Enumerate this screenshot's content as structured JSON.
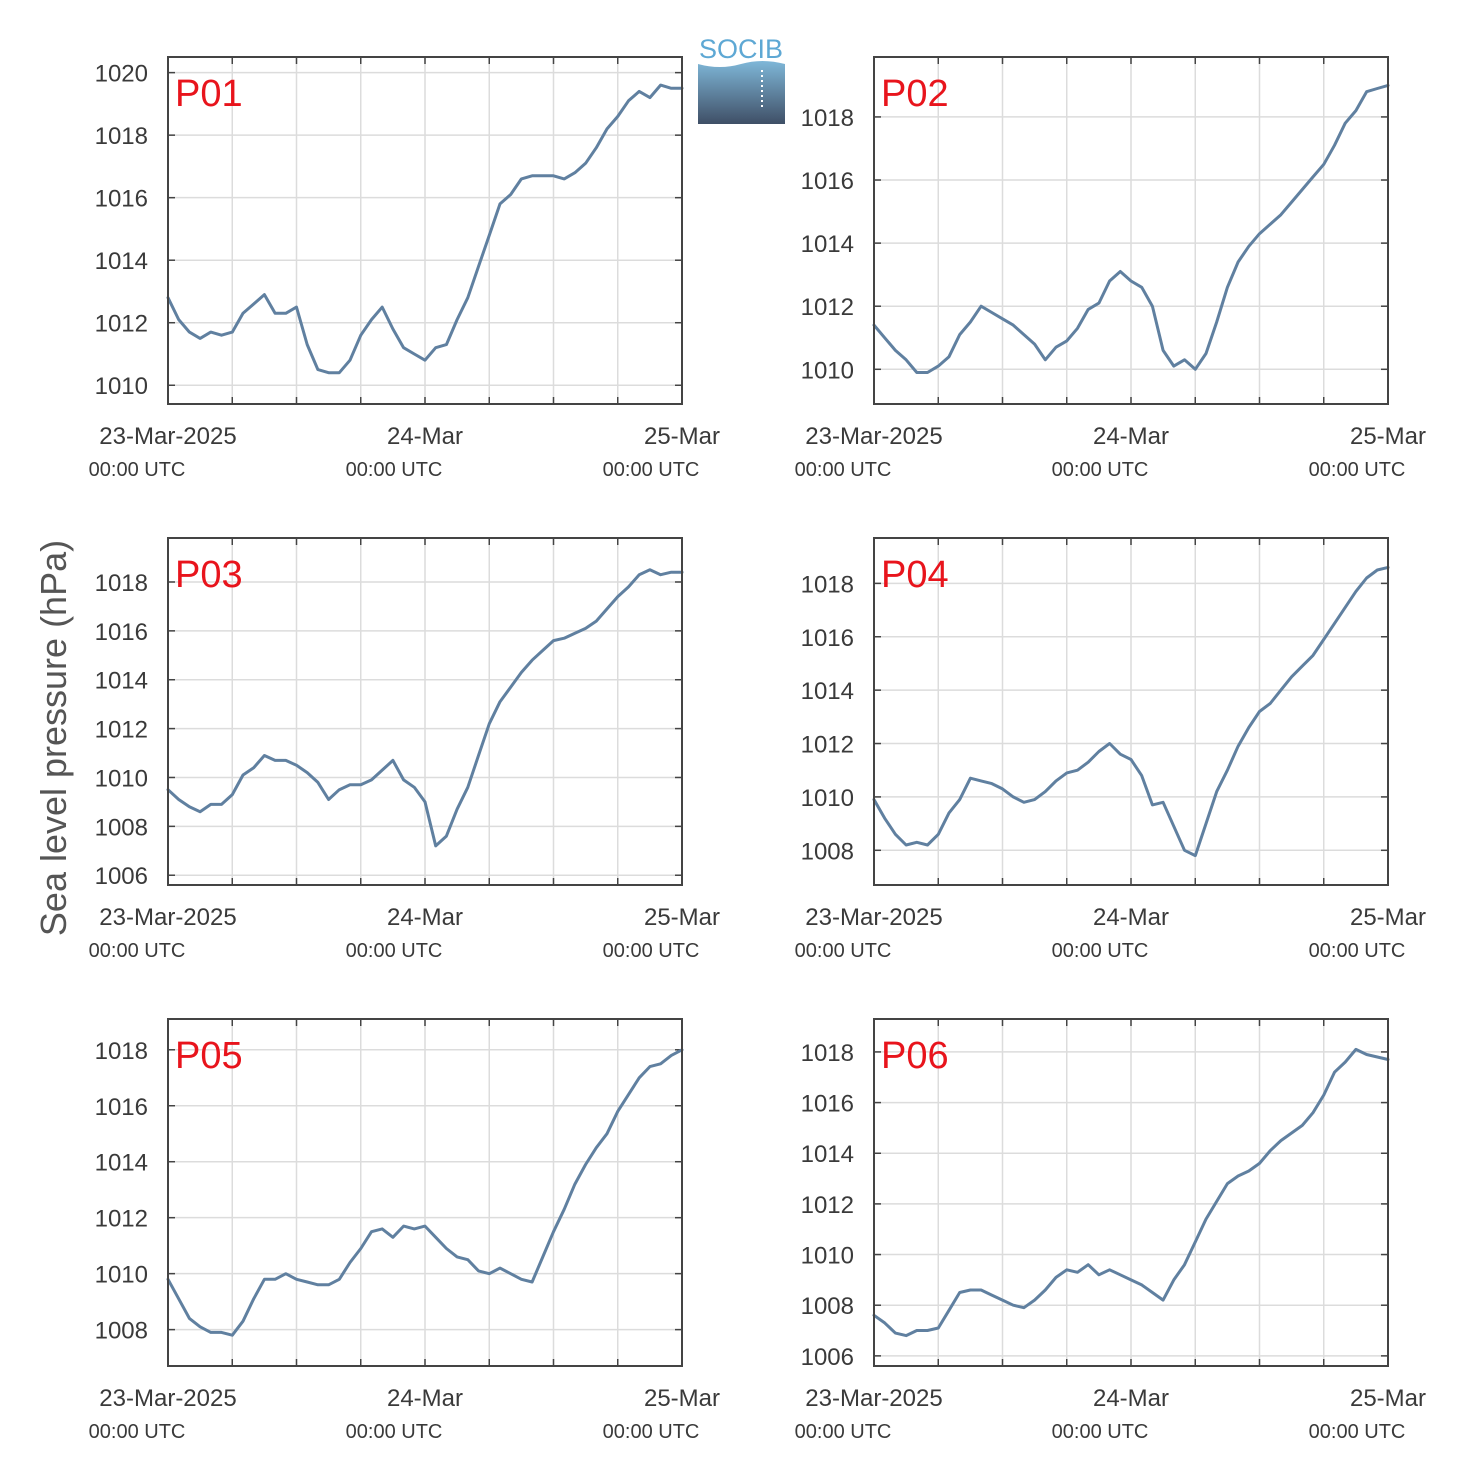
{
  "figure": {
    "ylabel": "Sea level pressure (hPa)",
    "logo": {
      "text": "SOCIB"
    },
    "x_tick_labels": [
      "23-Mar-2025",
      "24-Mar",
      "25-Mar"
    ],
    "x_tick_sublabels": [
      "00:00 UTC",
      "00:00 UTC",
      "00:00 UTC"
    ],
    "colors": {
      "line": "#6080a0",
      "panel_label": "#e8141c",
      "grid": "#dcdcdc",
      "axes": "#444444"
    }
  },
  "chart_data": [
    {
      "type": "line",
      "panel_label": "P01",
      "x_unit": "hours since 23-Mar-2025 00:00 UTC",
      "xlim": [
        0,
        48
      ],
      "ylim": [
        1009.4,
        1020.5
      ],
      "yticks": [
        1010,
        1012,
        1014,
        1016,
        1018,
        1020
      ],
      "grid": true,
      "x": [
        0,
        1,
        2,
        3,
        4,
        5,
        6,
        7,
        8,
        9,
        10,
        11,
        12,
        13,
        14,
        15,
        16,
        17,
        18,
        19,
        20,
        21,
        22,
        23,
        24,
        25,
        26,
        27,
        28,
        29,
        30,
        31,
        32,
        33,
        34,
        35,
        36,
        37,
        38,
        39,
        40,
        41,
        42,
        43,
        44,
        45,
        46,
        47,
        48
      ],
      "y": [
        1012.8,
        1012.1,
        1011.7,
        1011.5,
        1011.7,
        1011.6,
        1011.7,
        1012.3,
        1012.6,
        1012.9,
        1012.3,
        1012.3,
        1012.5,
        1011.3,
        1010.5,
        1010.4,
        1010.4,
        1010.8,
        1011.6,
        1012.1,
        1012.5,
        1011.8,
        1011.2,
        1011.0,
        1010.8,
        1011.2,
        1011.3,
        1012.1,
        1012.8,
        1013.8,
        1014.8,
        1015.8,
        1016.1,
        1016.6,
        1016.7,
        1016.7,
        1016.7,
        1016.6,
        1016.8,
        1017.1,
        1017.6,
        1018.2,
        1018.6,
        1019.1,
        1019.4,
        1019.2,
        1019.6,
        1019.5,
        1019.5
      ]
    },
    {
      "type": "line",
      "panel_label": "P02",
      "x_unit": "hours since 23-Mar-2025 00:00 UTC",
      "xlim": [
        0,
        48
      ],
      "ylim": [
        1008.9,
        1019.9
      ],
      "yticks": [
        1010,
        1012,
        1014,
        1016,
        1018
      ],
      "grid": true,
      "x": [
        0,
        1,
        2,
        3,
        4,
        5,
        6,
        7,
        8,
        9,
        10,
        11,
        12,
        13,
        14,
        15,
        16,
        17,
        18,
        19,
        20,
        21,
        22,
        23,
        24,
        25,
        26,
        27,
        28,
        29,
        30,
        31,
        32,
        33,
        34,
        35,
        36,
        37,
        38,
        39,
        40,
        41,
        42,
        43,
        44,
        45,
        46,
        47,
        48
      ],
      "y": [
        1011.4,
        1011.0,
        1010.6,
        1010.3,
        1009.9,
        1009.9,
        1010.1,
        1010.4,
        1011.1,
        1011.5,
        1012.0,
        1011.8,
        1011.6,
        1011.4,
        1011.1,
        1010.8,
        1010.3,
        1010.7,
        1010.9,
        1011.3,
        1011.9,
        1012.1,
        1012.8,
        1013.1,
        1012.8,
        1012.6,
        1012.0,
        1010.6,
        1010.1,
        1010.3,
        1010.0,
        1010.5,
        1011.5,
        1012.6,
        1013.4,
        1013.9,
        1014.3,
        1014.6,
        1014.9,
        1015.3,
        1015.7,
        1016.1,
        1016.5,
        1017.1,
        1017.8,
        1018.2,
        1018.8,
        1018.9,
        1019.0
      ]
    },
    {
      "type": "line",
      "panel_label": "P03",
      "x_unit": "hours since 23-Mar-2025 00:00 UTC",
      "xlim": [
        0,
        48
      ],
      "ylim": [
        1005.6,
        1019.8
      ],
      "yticks": [
        1006,
        1008,
        1010,
        1012,
        1014,
        1016,
        1018
      ],
      "grid": true,
      "x": [
        0,
        1,
        2,
        3,
        4,
        5,
        6,
        7,
        8,
        9,
        10,
        11,
        12,
        13,
        14,
        15,
        16,
        17,
        18,
        19,
        20,
        21,
        22,
        23,
        24,
        25,
        26,
        27,
        28,
        29,
        30,
        31,
        32,
        33,
        34,
        35,
        36,
        37,
        38,
        39,
        40,
        41,
        42,
        43,
        44,
        45,
        46,
        47,
        48
      ],
      "y": [
        1009.5,
        1009.1,
        1008.8,
        1008.6,
        1008.9,
        1008.9,
        1009.3,
        1010.1,
        1010.4,
        1010.9,
        1010.7,
        1010.7,
        1010.5,
        1010.2,
        1009.8,
        1009.1,
        1009.5,
        1009.7,
        1009.7,
        1009.9,
        1010.3,
        1010.7,
        1009.9,
        1009.6,
        1009.0,
        1007.2,
        1007.6,
        1008.7,
        1009.6,
        1010.9,
        1012.2,
        1013.1,
        1013.7,
        1014.3,
        1014.8,
        1015.2,
        1015.6,
        1015.7,
        1015.9,
        1016.1,
        1016.4,
        1016.9,
        1017.4,
        1017.8,
        1018.3,
        1018.5,
        1018.3,
        1018.4,
        1018.4
      ]
    },
    {
      "type": "line",
      "panel_label": "P04",
      "x_unit": "hours since 23-Mar-2025 00:00 UTC",
      "xlim": [
        0,
        48
      ],
      "ylim": [
        1006.7,
        1019.7
      ],
      "yticks": [
        1008,
        1010,
        1012,
        1014,
        1016,
        1018
      ],
      "grid": true,
      "x": [
        0,
        1,
        2,
        3,
        4,
        5,
        6,
        7,
        8,
        9,
        10,
        11,
        12,
        13,
        14,
        15,
        16,
        17,
        18,
        19,
        20,
        21,
        22,
        23,
        24,
        25,
        26,
        27,
        28,
        29,
        30,
        31,
        32,
        33,
        34,
        35,
        36,
        37,
        38,
        39,
        40,
        41,
        42,
        43,
        44,
        45,
        46,
        47,
        48
      ],
      "y": [
        1009.9,
        1009.2,
        1008.6,
        1008.2,
        1008.3,
        1008.2,
        1008.6,
        1009.4,
        1009.9,
        1010.7,
        1010.6,
        1010.5,
        1010.3,
        1010.0,
        1009.8,
        1009.9,
        1010.2,
        1010.6,
        1010.9,
        1011.0,
        1011.3,
        1011.7,
        1012.0,
        1011.6,
        1011.4,
        1010.8,
        1009.7,
        1009.8,
        1008.9,
        1008.0,
        1007.8,
        1009.0,
        1010.2,
        1011.0,
        1011.9,
        1012.6,
        1013.2,
        1013.5,
        1014.0,
        1014.5,
        1014.9,
        1015.3,
        1015.9,
        1016.5,
        1017.1,
        1017.7,
        1018.2,
        1018.5,
        1018.6
      ]
    },
    {
      "type": "line",
      "panel_label": "P05",
      "x_unit": "hours since 23-Mar-2025 00:00 UTC",
      "xlim": [
        0,
        48
      ],
      "ylim": [
        1006.7,
        1019.1
      ],
      "yticks": [
        1008,
        1010,
        1012,
        1014,
        1016,
        1018
      ],
      "grid": true,
      "x": [
        0,
        1,
        2,
        3,
        4,
        5,
        6,
        7,
        8,
        9,
        10,
        11,
        12,
        13,
        14,
        15,
        16,
        17,
        18,
        19,
        20,
        21,
        22,
        23,
        24,
        25,
        26,
        27,
        28,
        29,
        30,
        31,
        32,
        33,
        34,
        35,
        36,
        37,
        38,
        39,
        40,
        41,
        42,
        43,
        44,
        45,
        46,
        47,
        48
      ],
      "y": [
        1009.8,
        1009.1,
        1008.4,
        1008.1,
        1007.9,
        1007.9,
        1007.8,
        1008.3,
        1009.1,
        1009.8,
        1009.8,
        1010.0,
        1009.8,
        1009.7,
        1009.6,
        1009.6,
        1009.8,
        1010.4,
        1010.9,
        1011.5,
        1011.6,
        1011.3,
        1011.7,
        1011.6,
        1011.7,
        1011.3,
        1010.9,
        1010.6,
        1010.5,
        1010.1,
        1010.0,
        1010.2,
        1010.0,
        1009.8,
        1009.7,
        1010.6,
        1011.5,
        1012.3,
        1013.2,
        1013.9,
        1014.5,
        1015.0,
        1015.8,
        1016.4,
        1017.0,
        1017.4,
        1017.5,
        1017.8,
        1018.0
      ]
    },
    {
      "type": "line",
      "panel_label": "P06",
      "x_unit": "hours since 23-Mar-2025 00:00 UTC",
      "xlim": [
        0,
        48
      ],
      "ylim": [
        1005.6,
        1019.3
      ],
      "yticks": [
        1006,
        1008,
        1010,
        1012,
        1014,
        1016,
        1018
      ],
      "grid": true,
      "x": [
        0,
        1,
        2,
        3,
        4,
        5,
        6,
        7,
        8,
        9,
        10,
        11,
        12,
        13,
        14,
        15,
        16,
        17,
        18,
        19,
        20,
        21,
        22,
        23,
        24,
        25,
        26,
        27,
        28,
        29,
        30,
        31,
        32,
        33,
        34,
        35,
        36,
        37,
        38,
        39,
        40,
        41,
        42,
        43,
        44,
        45,
        46,
        47,
        48
      ],
      "y": [
        1007.6,
        1007.3,
        1006.9,
        1006.8,
        1007.0,
        1007.0,
        1007.1,
        1007.8,
        1008.5,
        1008.6,
        1008.6,
        1008.4,
        1008.2,
        1008.0,
        1007.9,
        1008.2,
        1008.6,
        1009.1,
        1009.4,
        1009.3,
        1009.6,
        1009.2,
        1009.4,
        1009.2,
        1009.0,
        1008.8,
        1008.5,
        1008.2,
        1009.0,
        1009.6,
        1010.5,
        1011.4,
        1012.1,
        1012.8,
        1013.1,
        1013.3,
        1013.6,
        1014.1,
        1014.5,
        1014.8,
        1015.1,
        1015.6,
        1016.3,
        1017.2,
        1017.6,
        1018.1,
        1017.9,
        1017.8,
        1017.7
      ]
    }
  ]
}
